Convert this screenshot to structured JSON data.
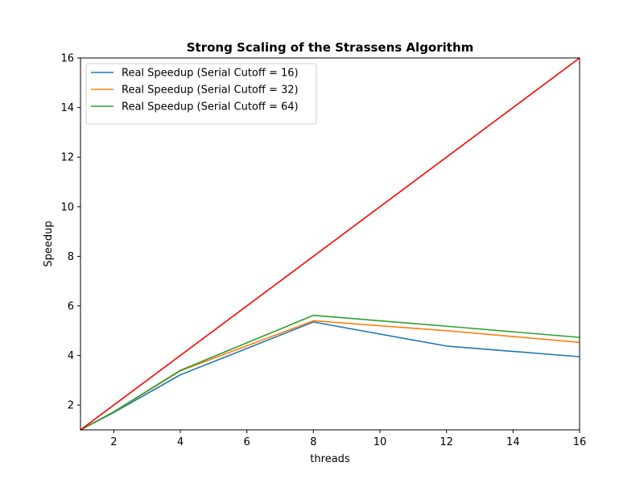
{
  "chart_data": {
    "type": "line",
    "title": "Strong Scaling of the Strassens Algorithm",
    "xlabel": "threads",
    "ylabel": "Speedup",
    "xlim": [
      1,
      16
    ],
    "ylim": [
      1,
      16
    ],
    "xticks": [
      2,
      4,
      6,
      8,
      10,
      12,
      14,
      16
    ],
    "yticks": [
      2,
      4,
      6,
      8,
      10,
      12,
      14,
      16
    ],
    "grid": false,
    "legend_position": "upper-left",
    "series": [
      {
        "name": "Real Speedup (Serial Cutoff = 16)",
        "color": "#1f77b4",
        "x": [
          1,
          2,
          4,
          8,
          12,
          16
        ],
        "y": [
          1.0,
          1.7,
          3.22,
          5.35,
          4.38,
          3.95
        ],
        "in_legend": true
      },
      {
        "name": "Real Speedup (Serial Cutoff = 32)",
        "color": "#ff7f0e",
        "x": [
          1,
          2,
          4,
          8,
          12,
          16
        ],
        "y": [
          1.0,
          1.72,
          3.38,
          5.4,
          5.0,
          4.53
        ],
        "in_legend": true
      },
      {
        "name": "Real Speedup (Serial Cutoff = 64)",
        "color": "#2ca02c",
        "x": [
          1,
          2,
          4,
          8,
          12,
          16
        ],
        "y": [
          1.0,
          1.73,
          3.4,
          5.62,
          5.18,
          4.73
        ],
        "in_legend": true
      },
      {
        "color": "#ff0000",
        "x": [
          1,
          16
        ],
        "y": [
          1,
          16
        ],
        "in_legend": false
      }
    ]
  }
}
